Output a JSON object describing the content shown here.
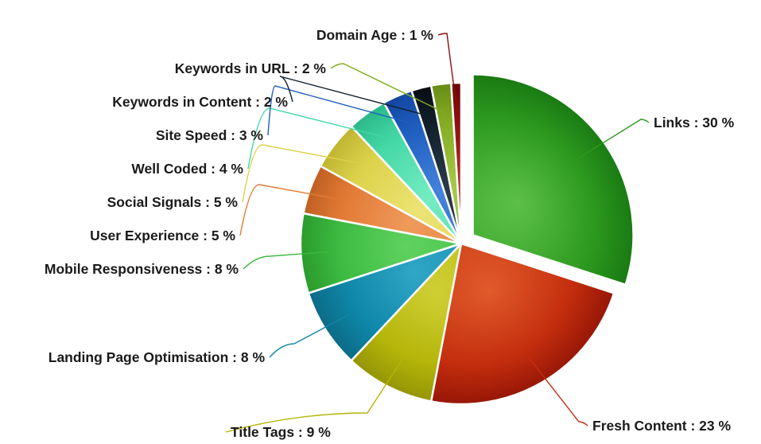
{
  "chart_data": {
    "type": "pie",
    "title": "",
    "slices": [
      {
        "label": "Links : 30 %",
        "value": 30,
        "color": "#2e9a1f",
        "light": "#5cc048",
        "dark": "#157410",
        "exploded": true
      },
      {
        "label": "Fresh Content : 23 %",
        "value": 23,
        "color": "#c42e0e",
        "light": "#e05a2b",
        "dark": "#8e1205"
      },
      {
        "label": "Title Tags : 9 %",
        "value": 9,
        "color": "#b5b50a",
        "light": "#cfcf35",
        "dark": "#8e8e05"
      },
      {
        "label": "Landing Page Optimisation : 8 %",
        "value": 8,
        "color": "#0f87a8",
        "light": "#30a6c6",
        "dark": "#0a6580"
      },
      {
        "label": "Mobile Responsiveness : 8 %",
        "value": 8,
        "color": "#3cba40",
        "light": "#5fd25e",
        "dark": "#279428"
      },
      {
        "label": "User Experience : 5 %",
        "value": 5,
        "color": "#e27a35",
        "light": "#ef9a5c",
        "dark": "#b85a1e"
      },
      {
        "label": "Social Signals : 5 %",
        "value": 5,
        "color": "#dcd24a",
        "light": "#ece374",
        "dark": "#b8ae2b"
      },
      {
        "label": "Well Coded : 4 %",
        "value": 4,
        "color": "#44d8a6",
        "light": "#74ecc2",
        "dark": "#25b183"
      },
      {
        "label": "Site Speed : 3 %",
        "value": 3,
        "color": "#1f5ebf",
        "light": "#4483dc",
        "dark": "#10409a"
      },
      {
        "label": "Keywords in Content : 2 %",
        "value": 2,
        "color": "#111f2a",
        "light": "#2b3b48",
        "dark": "#050a0f"
      },
      {
        "label": "Keywords in URL : 2 %",
        "value": 2,
        "color": "#84ab21",
        "light": "#a5c948",
        "dark": "#628514"
      },
      {
        "label": "Domain Age : 1 %",
        "value": 1,
        "color": "#8e0e0e",
        "light": "#b42b2b",
        "dark": "#600505"
      }
    ]
  }
}
